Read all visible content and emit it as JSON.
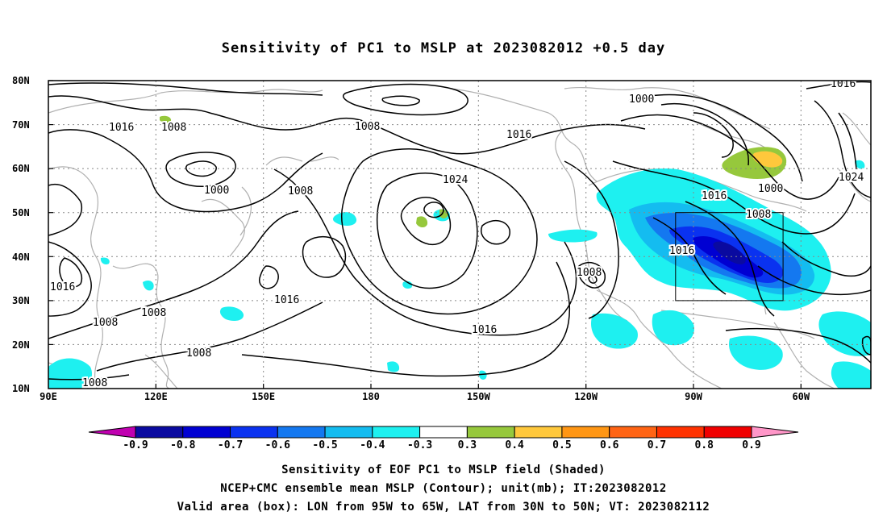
{
  "title": "Sensitivity of PC1 to MSLP at 2023082012 +0.5 day",
  "map": {
    "lat_labels": [
      "80N",
      "70N",
      "60N",
      "50N",
      "40N",
      "30N",
      "20N",
      "10N"
    ],
    "lon_labels": [
      "90E",
      "120E",
      "150E",
      "180",
      "150W",
      "120W",
      "90W",
      "60W"
    ],
    "valid_box": {
      "lon": [
        -95,
        -65
      ],
      "lat": [
        30,
        50
      ]
    },
    "contour_labels": [
      "1016",
      "1008",
      "1008",
      "1016",
      "1000",
      "1016",
      "1000",
      "1008",
      "1024",
      "1024",
      "1016",
      "1008",
      "1000",
      "1008",
      "1016",
      "1016",
      "1008",
      "1008",
      "1016",
      "1008",
      "1008",
      "1016",
      "1008"
    ]
  },
  "colorbar": {
    "labels": [
      "-0.9",
      "-0.8",
      "-0.7",
      "-0.6",
      "-0.5",
      "-0.4",
      "-0.3",
      "0.3",
      "0.4",
      "0.5",
      "0.6",
      "0.7",
      "0.8",
      "0.9"
    ],
    "colors": [
      "#c000b0",
      "#0a0aa0",
      "#0000d2",
      "#0a32f0",
      "#1478f0",
      "#14bcf0",
      "#1ef0f0",
      "#ffffff",
      "#96c83c",
      "#ffc83c",
      "#ff9614",
      "#ff6414",
      "#ff3200",
      "#f00000",
      "#ff96c8"
    ]
  },
  "captions": [
    "Sensitivity of EOF PC1 to MSLP field (Shaded)",
    "NCEP+CMC ensemble mean MSLP (Contour); unit(mb); IT:2023082012",
    "Valid area (box): LON from 95W to 65W, LAT from 30N to 50N; VT: 2023082112"
  ]
}
